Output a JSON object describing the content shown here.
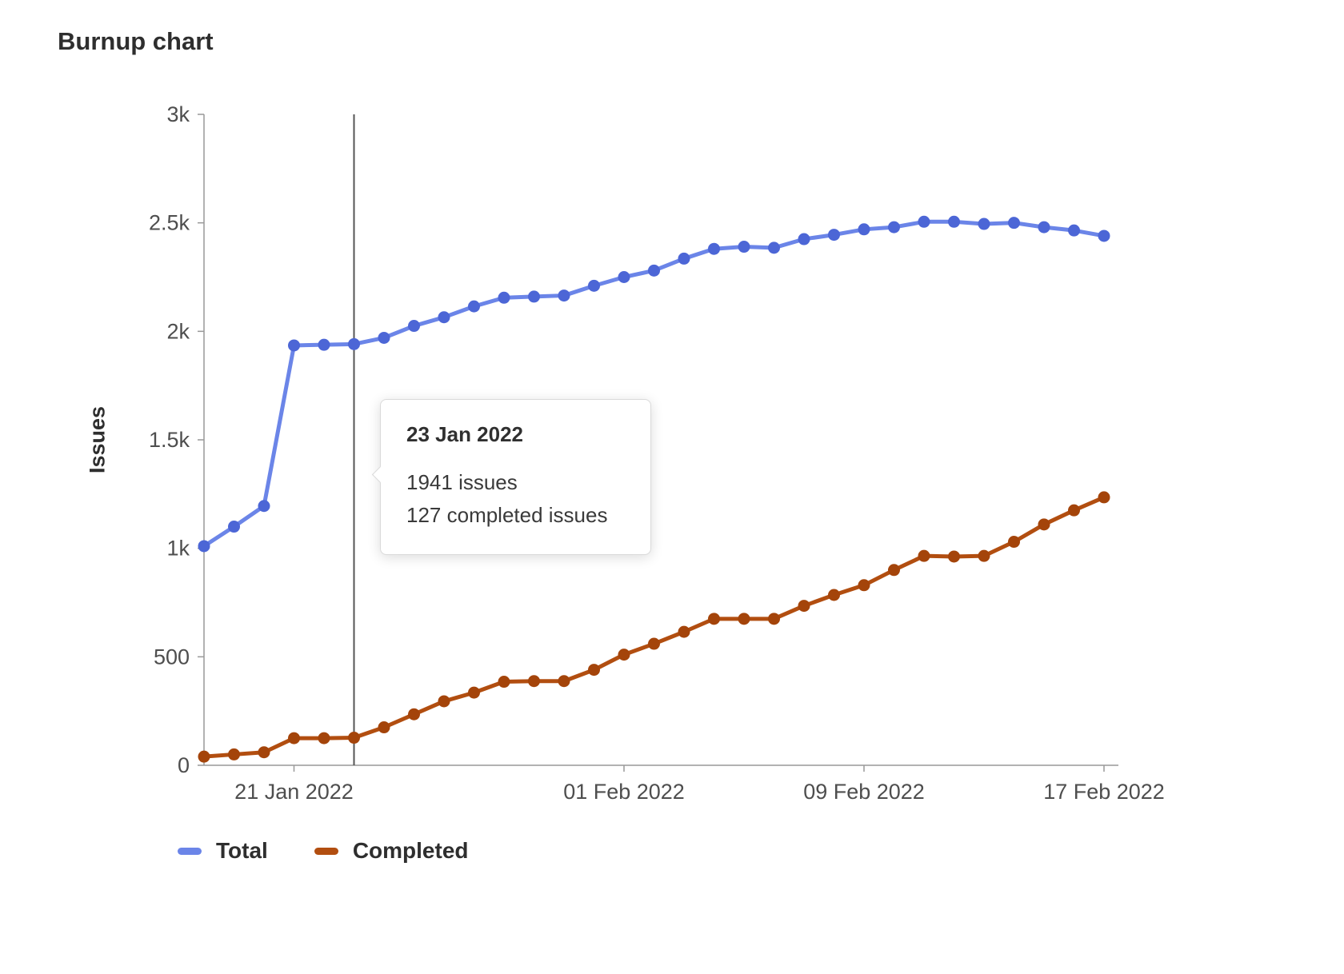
{
  "page": {
    "title": "Burnup chart"
  },
  "chart_data": {
    "type": "line",
    "title": "Burnup chart",
    "xlabel": "",
    "ylabel": "Issues",
    "ylim": [
      0,
      3000
    ],
    "grid": false,
    "legend_position": "bottom",
    "axis_color": "#999999",
    "tick_color": "#4e4e4e",
    "y_ticks": [
      {
        "value": 0,
        "label": "0"
      },
      {
        "value": 500,
        "label": "500"
      },
      {
        "value": 1000,
        "label": "1k"
      },
      {
        "value": 1500,
        "label": "1.5k"
      },
      {
        "value": 2000,
        "label": "2k"
      },
      {
        "value": 2500,
        "label": "2.5k"
      },
      {
        "value": 3000,
        "label": "3k"
      }
    ],
    "x_tick_labels": [
      {
        "index": 3,
        "label": "21 Jan 2022"
      },
      {
        "index": 14,
        "label": "01 Feb 2022"
      },
      {
        "index": 22,
        "label": "09 Feb 2022"
      },
      {
        "index": 30,
        "label": "17 Feb 2022"
      }
    ],
    "x": [
      "18 Jan 2022",
      "19 Jan 2022",
      "20 Jan 2022",
      "21 Jan 2022",
      "22 Jan 2022",
      "23 Jan 2022",
      "24 Jan 2022",
      "25 Jan 2022",
      "26 Jan 2022",
      "27 Jan 2022",
      "28 Jan 2022",
      "29 Jan 2022",
      "30 Jan 2022",
      "31 Jan 2022",
      "01 Feb 2022",
      "02 Feb 2022",
      "03 Feb 2022",
      "04 Feb 2022",
      "05 Feb 2022",
      "06 Feb 2022",
      "07 Feb 2022",
      "08 Feb 2022",
      "09 Feb 2022",
      "10 Feb 2022",
      "11 Feb 2022",
      "12 Feb 2022",
      "13 Feb 2022",
      "14 Feb 2022",
      "15 Feb 2022",
      "16 Feb 2022",
      "17 Feb 2022"
    ],
    "series": [
      {
        "name": "Total",
        "color": "#6b85e8",
        "point_color": "#4c66d6",
        "values": [
          1010,
          1100,
          1195,
          1935,
          1938,
          1941,
          1970,
          2025,
          2065,
          2115,
          2155,
          2160,
          2165,
          2210,
          2250,
          2280,
          2335,
          2380,
          2390,
          2385,
          2425,
          2445,
          2470,
          2480,
          2505,
          2505,
          2495,
          2500,
          2480,
          2465,
          2440
        ]
      },
      {
        "name": "Completed",
        "color": "#b24e10",
        "point_color": "#a4440a",
        "values": [
          40,
          50,
          60,
          125,
          125,
          127,
          175,
          235,
          295,
          335,
          385,
          388,
          388,
          440,
          510,
          560,
          615,
          675,
          675,
          675,
          735,
          785,
          830,
          900,
          965,
          962,
          965,
          1030,
          1110,
          1175,
          1235
        ]
      }
    ]
  },
  "tooltip": {
    "date": "23 Jan 2022",
    "total_text": "1941 issues",
    "completed_text": "127 completed issues",
    "x_index": 5,
    "line_color": "#555555"
  },
  "legend": [
    {
      "label": "Total",
      "color": "#6b85e8"
    },
    {
      "label": "Completed",
      "color": "#b24e10"
    }
  ]
}
